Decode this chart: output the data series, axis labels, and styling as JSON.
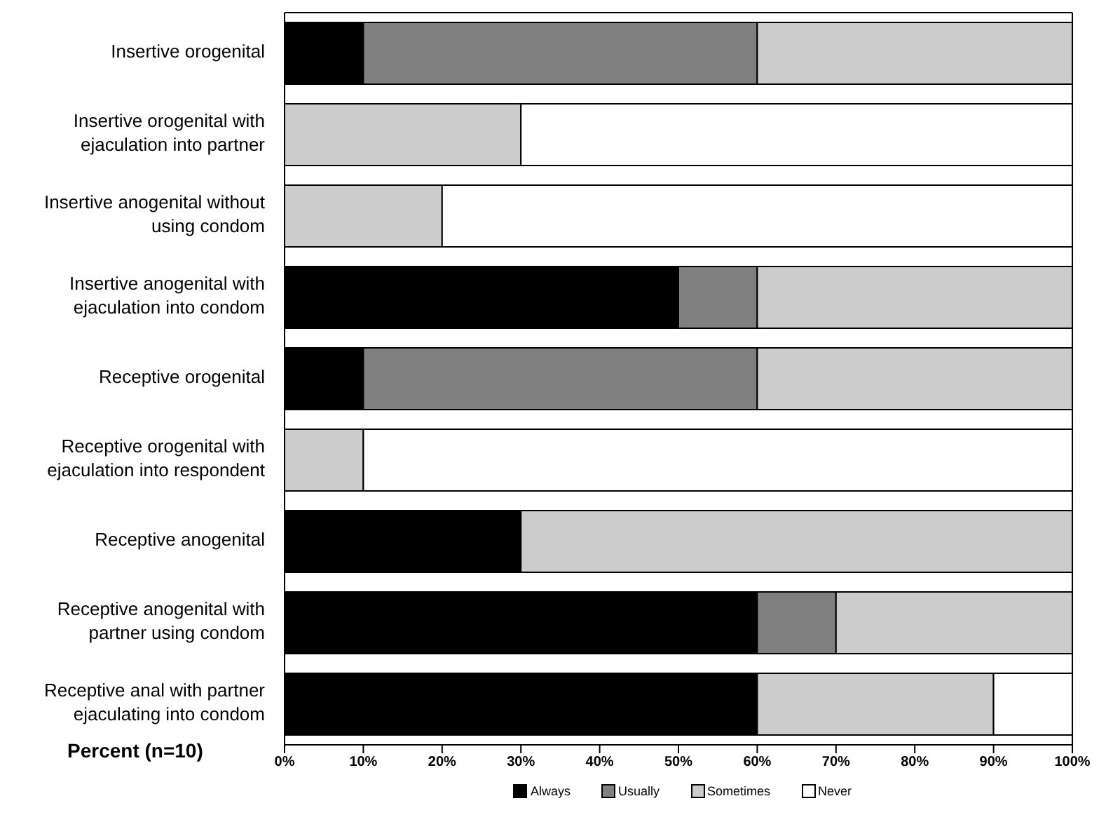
{
  "chart_data": {
    "type": "bar",
    "orientation": "horizontal",
    "stacked": true,
    "xlabel": "Percent (n=10)",
    "categories": [
      "Insertive orogenital",
      "Insertive orogenital with ejaculation into partner",
      "Insertive anogenital without using condom",
      "Insertive anogenital with ejaculation into condom",
      "Receptive orogenital",
      "Receptive orogenital with ejaculation into respondent",
      "Receptive anogenital",
      "Receptive anogenital with partner using condom",
      "Receptive anal with partner ejaculating into condom"
    ],
    "series": [
      {
        "name": "Always",
        "color": "#000000",
        "values": [
          10,
          0,
          0,
          50,
          10,
          0,
          30,
          60,
          60
        ]
      },
      {
        "name": "Usually",
        "color": "#808080",
        "values": [
          50,
          0,
          0,
          10,
          50,
          0,
          0,
          10,
          0
        ]
      },
      {
        "name": "Sometimes",
        "color": "#cccccc",
        "values": [
          40,
          30,
          20,
          40,
          40,
          10,
          70,
          30,
          30
        ]
      },
      {
        "name": "Never",
        "color": "#ffffff",
        "values": [
          0,
          70,
          80,
          0,
          0,
          90,
          0,
          0,
          10
        ]
      }
    ],
    "xlim": [
      0,
      100
    ],
    "xticks": [
      {
        "value": 0,
        "label": "0%"
      },
      {
        "value": 10,
        "label": "10%"
      },
      {
        "value": 20,
        "label": "20%"
      },
      {
        "value": 30,
        "label": "30%"
      },
      {
        "value": 40,
        "label": "40%"
      },
      {
        "value": 50,
        "label": "50%"
      },
      {
        "value": 60,
        "label": "60%"
      },
      {
        "value": 70,
        "label": "70%"
      },
      {
        "value": 80,
        "label": "80%"
      },
      {
        "value": 90,
        "label": "90%"
      },
      {
        "value": 100,
        "label": "100%"
      }
    ],
    "legend": "bottom",
    "grid": false
  }
}
